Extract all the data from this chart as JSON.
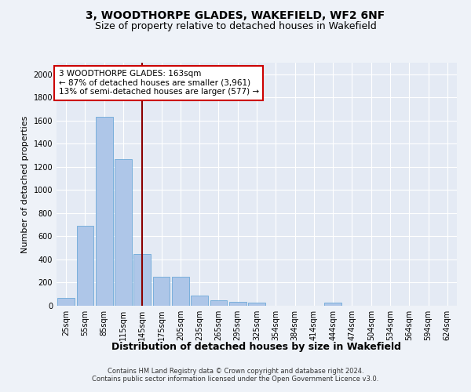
{
  "title": "3, WOODTHORPE GLADES, WAKEFIELD, WF2 6NF",
  "subtitle": "Size of property relative to detached houses in Wakefield",
  "xlabel": "Distribution of detached houses by size in Wakefield",
  "ylabel": "Number of detached properties",
  "bar_color": "#aec6e8",
  "bar_edge_color": "#5a9fd4",
  "vline_color": "#8b0000",
  "annotation_text": "3 WOODTHORPE GLADES: 163sqm\n← 87% of detached houses are smaller (3,961)\n13% of semi-detached houses are larger (577) →",
  "annotation_box_color": "#ffffff",
  "annotation_box_edge": "#cc0000",
  "footnote1": "Contains HM Land Registry data © Crown copyright and database right 2024.",
  "footnote2": "Contains public sector information licensed under the Open Government Licence v3.0.",
  "categories": [
    "25sqm",
    "55sqm",
    "85sqm",
    "115sqm",
    "145sqm",
    "175sqm",
    "205sqm",
    "235sqm",
    "265sqm",
    "295sqm",
    "325sqm",
    "354sqm",
    "384sqm",
    "414sqm",
    "444sqm",
    "474sqm",
    "504sqm",
    "534sqm",
    "564sqm",
    "594sqm",
    "624sqm"
  ],
  "values": [
    65,
    690,
    1630,
    1270,
    450,
    250,
    250,
    85,
    50,
    35,
    25,
    0,
    0,
    0,
    25,
    0,
    0,
    0,
    0,
    0,
    0
  ],
  "vline_index": 4.5,
  "ylim": [
    0,
    2100
  ],
  "yticks": [
    0,
    200,
    400,
    600,
    800,
    1000,
    1200,
    1400,
    1600,
    1800,
    2000
  ],
  "background_color": "#eef2f8",
  "plot_background": "#e4eaf4",
  "grid_color": "#ffffff",
  "title_fontsize": 10,
  "subtitle_fontsize": 9,
  "xlabel_fontsize": 9,
  "ylabel_fontsize": 8,
  "tick_fontsize": 7,
  "annotation_fontsize": 7.5,
  "footnote_fontsize": 6
}
